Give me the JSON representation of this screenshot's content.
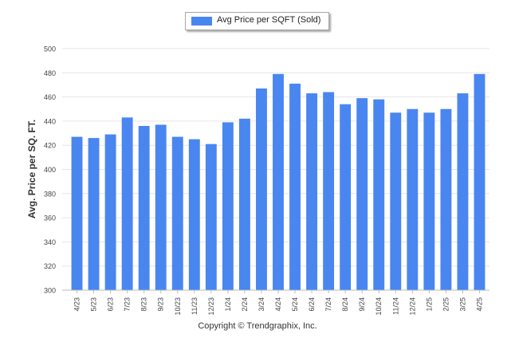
{
  "chart_data": {
    "type": "bar",
    "categories": [
      "4/23",
      "5/23",
      "6/23",
      "7/23",
      "8/23",
      "9/23",
      "10/23",
      "11/23",
      "12/23",
      "1/24",
      "2/24",
      "3/24",
      "4/24",
      "5/24",
      "6/24",
      "7/24",
      "8/24",
      "9/24",
      "10/24",
      "11/24",
      "12/24",
      "1/25",
      "2/25",
      "3/25",
      "4/25"
    ],
    "series": [
      {
        "name": "Avg Price per SQFT (Sold)",
        "color": "#4a86f0",
        "values": [
          427,
          426,
          429,
          443,
          436,
          437,
          427,
          425,
          421,
          439,
          442,
          467,
          479,
          471,
          463,
          464,
          454,
          459,
          458,
          447,
          450,
          447,
          450,
          463,
          479
        ]
      }
    ],
    "ylabel": "Avg. Price per SQ. FT.",
    "ylim": [
      300,
      500
    ],
    "yticks": [
      300,
      320,
      340,
      360,
      380,
      400,
      420,
      440,
      460,
      480,
      500
    ],
    "grid": true,
    "legend_position": "top-center"
  },
  "copyright": "Copyright © Trendgraphix, Inc."
}
